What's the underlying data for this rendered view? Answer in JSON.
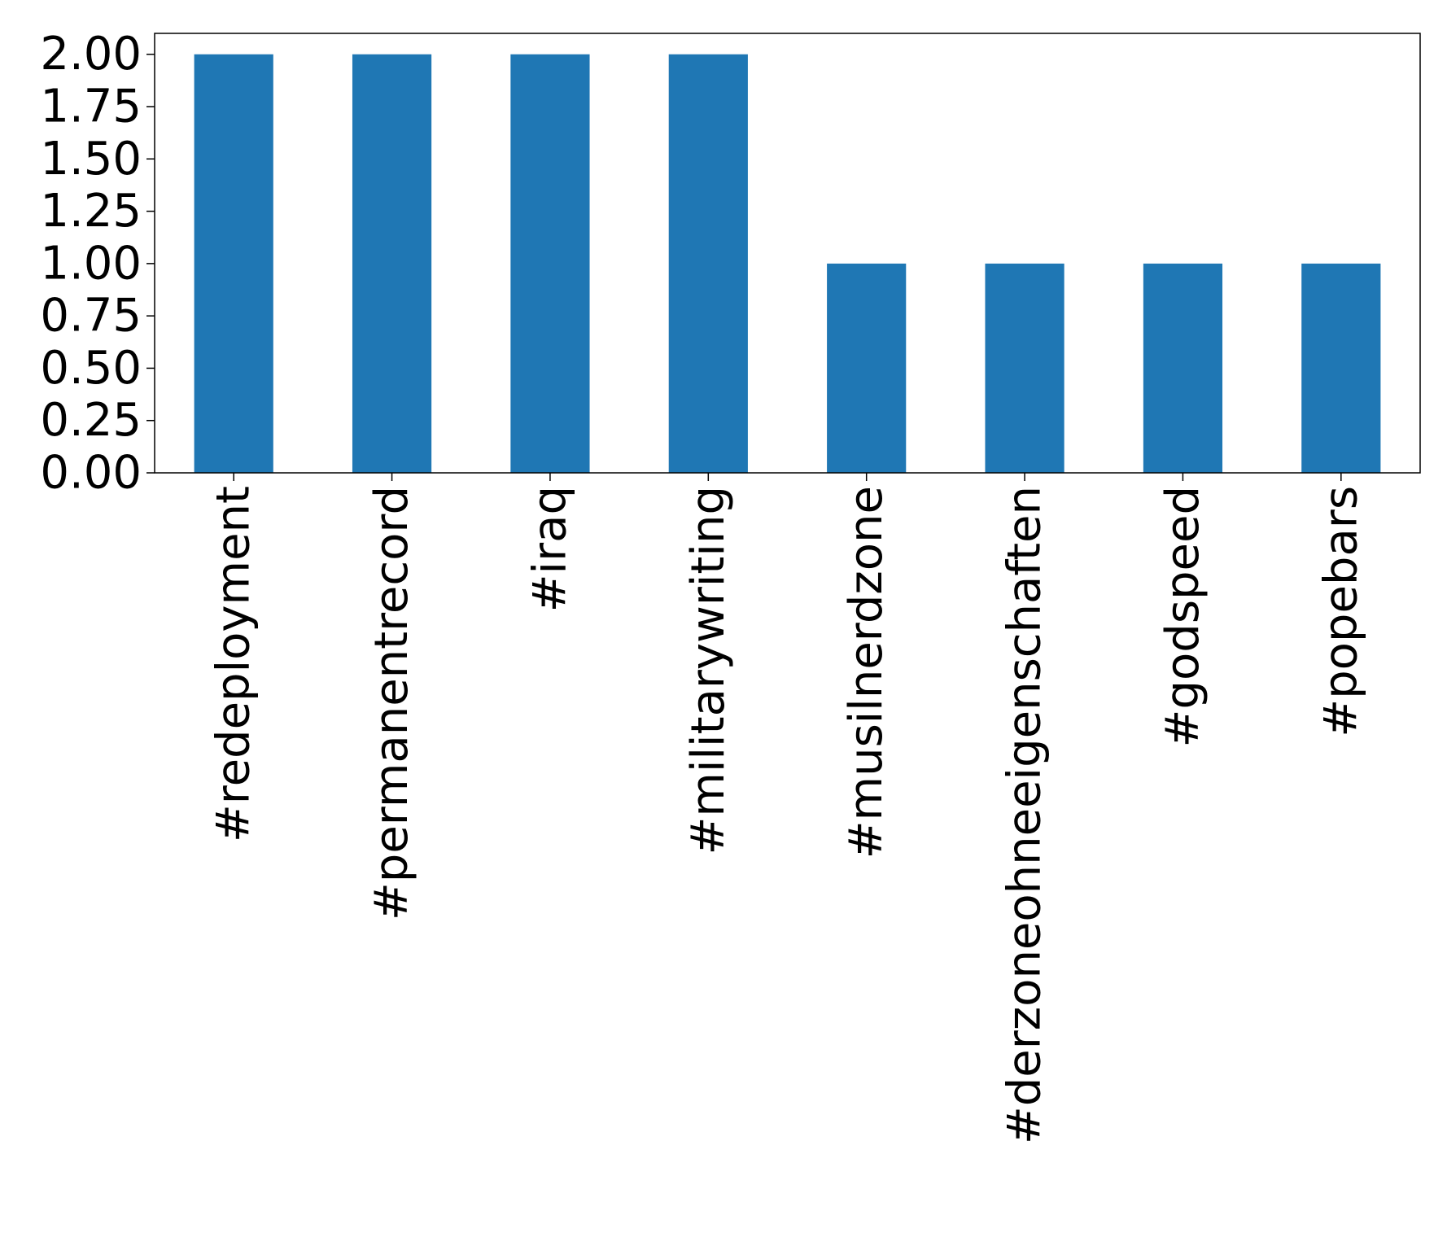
{
  "chart_data": {
    "type": "bar",
    "title": "",
    "xlabel": "",
    "ylabel": "",
    "categories": [
      "#redeployment",
      "#permanentrecord",
      "#iraq",
      "#militarywriting",
      "#musilnerdzone",
      "#derzoneohneeigenschaften",
      "#godspeed",
      "#popebars"
    ],
    "values": [
      2,
      2,
      2,
      2,
      1,
      1,
      1,
      1
    ],
    "ylim": [
      0,
      2.1
    ],
    "yticks": [
      "0.00",
      "0.25",
      "0.50",
      "0.75",
      "1.00",
      "1.25",
      "1.50",
      "1.75",
      "2.00"
    ],
    "grid": false,
    "legend": "none",
    "bar_color": "#1f77b4"
  }
}
